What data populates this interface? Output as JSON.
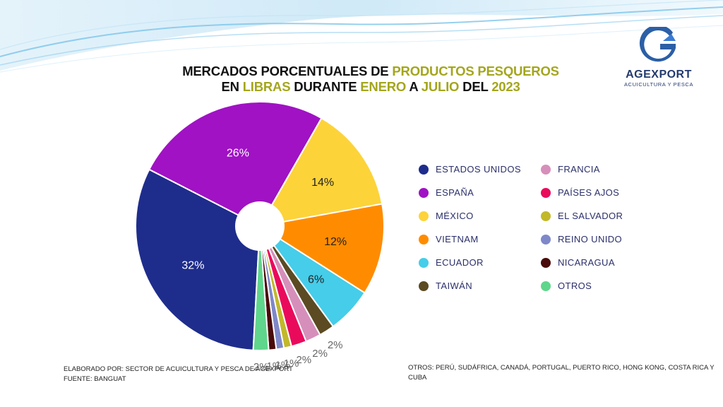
{
  "title": {
    "line1": [
      {
        "text": "MERCADOS PORCENTUALES DE ",
        "hl": false
      },
      {
        "text": "PRODUCTOS PESQUEROS",
        "hl": true
      }
    ],
    "line2": [
      {
        "text": "EN ",
        "hl": false
      },
      {
        "text": "LIBRAS",
        "hl": true
      },
      {
        "text": " DURANTE ",
        "hl": false
      },
      {
        "text": "ENERO",
        "hl": true
      },
      {
        "text": " A ",
        "hl": false
      },
      {
        "text": "JULIO",
        "hl": true
      },
      {
        "text": " DEL ",
        "hl": false
      },
      {
        "text": "2023",
        "hl": true
      }
    ]
  },
  "logo": {
    "name": "AGEXPORT",
    "subtitle": "ACUICULTURA Y PESCA",
    "icon": "agexport-g-logo",
    "color": "#2b5fa6"
  },
  "chart_data": {
    "type": "pie",
    "donut_hole": true,
    "legend_position": "right",
    "slices": [
      {
        "name": "ESTADOS UNIDOS",
        "value": 32,
        "label": "32%",
        "color": "#1e2d8c"
      },
      {
        "name": "ESPAÑA",
        "value": 26,
        "label": "26%",
        "color": "#a012c4"
      },
      {
        "name": "MÉXICO",
        "value": 14,
        "label": "14%",
        "color": "#fdd33a"
      },
      {
        "name": "VIETNAM",
        "value": 12,
        "label": "12%",
        "color": "#ff8c00"
      },
      {
        "name": "ECUADOR",
        "value": 6,
        "label": "6%",
        "color": "#45cde9"
      },
      {
        "name": "TAIWÁN",
        "value": 2,
        "label": "2%",
        "color": "#5b4a22"
      },
      {
        "name": "FRANCIA",
        "value": 2,
        "label": "2%",
        "color": "#d68fba"
      },
      {
        "name": "PAÍSES AJOS",
        "value": 2,
        "label": "2%",
        "color": "#ea0a5c"
      },
      {
        "name": "EL SALVADOR",
        "value": 1,
        "label": "1%",
        "color": "#c2b82a"
      },
      {
        "name": "REINO UNIDO",
        "value": 1,
        "label": "1%",
        "color": "#7f88c9"
      },
      {
        "name": "NICARAGUA",
        "value": 1,
        "label": "1%",
        "color": "#4a0a0a"
      },
      {
        "name": "OTROS",
        "value": 2,
        "label": "2%",
        "color": "#5fd68c"
      }
    ]
  },
  "footer": {
    "left_line1": "ELABORADO POR: SECTOR DE ACUICULTURA Y PESCA DE AGEXPORT",
    "left_line2": "FUENTE:  BANGUAT",
    "right": "OTROS:  PERÚ, SUDÁFRICA, CANADÁ, PORTUGAL, PUERTO RICO, HONG KONG, COSTA RICA Y CUBA"
  }
}
